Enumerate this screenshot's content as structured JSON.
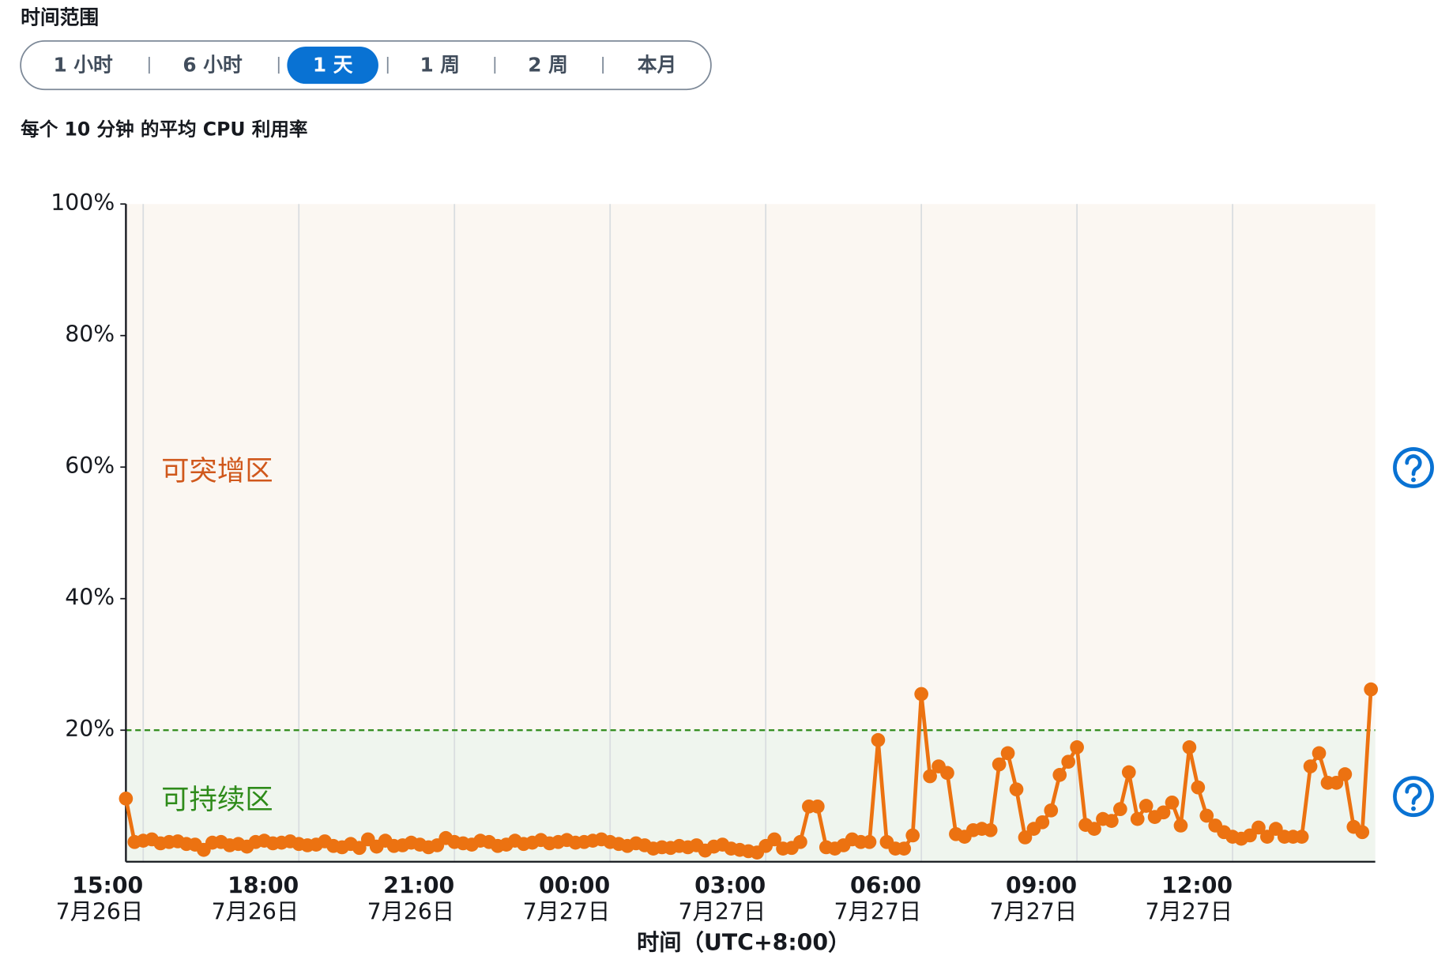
{
  "time_range": {
    "label": "时间范围",
    "options": [
      "1 小时",
      "6 小时",
      "1 天",
      "1 周",
      "2 周",
      "本月"
    ],
    "selected_index": 2
  },
  "chart_data": {
    "type": "line",
    "title": "每个 10 分钟 的平均 CPU 利用率",
    "x_label": "时间（UTC+8:00）",
    "color": "#ec7211",
    "x": [
      "7月26日 14:40",
      "7月26日 14:50",
      "7月26日 15:00",
      "7月26日 15:10",
      "7月26日 15:20",
      "7月26日 15:30",
      "7月26日 15:40",
      "7月26日 15:50",
      "7月26日 16:00",
      "7月26日 16:10",
      "7月26日 16:20",
      "7月26日 16:30",
      "7月26日 16:40",
      "7月26日 16:50",
      "7月26日 17:00",
      "7月26日 17:10",
      "7月26日 17:20",
      "7月26日 17:30",
      "7月26日 17:40",
      "7月26日 17:50",
      "7月26日 18:00",
      "7月26日 18:10",
      "7月26日 18:20",
      "7月26日 18:30",
      "7月26日 18:40",
      "7月26日 18:50",
      "7月26日 19:00",
      "7月26日 19:10",
      "7月26日 19:20",
      "7月26日 19:30",
      "7月26日 19:40",
      "7月26日 19:50",
      "7月26日 20:00",
      "7月26日 20:10",
      "7月26日 20:20",
      "7月26日 20:30",
      "7月26日 20:40",
      "7月26日 20:50",
      "7月26日 21:00",
      "7月26日 21:10",
      "7月26日 21:20",
      "7月26日 21:30",
      "7月26日 21:40",
      "7月26日 21:50",
      "7月26日 22:00",
      "7月26日 22:10",
      "7月26日 22:20",
      "7月26日 22:30",
      "7月26日 22:40",
      "7月26日 22:50",
      "7月26日 23:00",
      "7月26日 23:10",
      "7月26日 23:20",
      "7月26日 23:30",
      "7月26日 23:40",
      "7月26日 23:50",
      "7月27日 00:00",
      "7月27日 00:10",
      "7月27日 00:20",
      "7月27日 00:30",
      "7月27日 00:40",
      "7月27日 00:50",
      "7月27日 01:00",
      "7月27日 01:10",
      "7月27日 01:20",
      "7月27日 01:30",
      "7月27日 01:40",
      "7月27日 01:50",
      "7月27日 02:00",
      "7月27日 02:10",
      "7月27日 02:20",
      "7月27日 02:30",
      "7月27日 02:40",
      "7月27日 02:50",
      "7月27日 03:00",
      "7月27日 03:10",
      "7月27日 03:20",
      "7月27日 03:30",
      "7月27日 03:40",
      "7月27日 03:50",
      "7月27日 04:00",
      "7月27日 04:10",
      "7月27日 04:20",
      "7月27日 04:30",
      "7月27日 04:40",
      "7月27日 04:50",
      "7月27日 05:00",
      "7月27日 05:10",
      "7月27日 05:20",
      "7月27日 05:30",
      "7月27日 05:40",
      "7月27日 05:50",
      "7月27日 06:00",
      "7月27日 06:10",
      "7月27日 06:20",
      "7月27日 06:30",
      "7月27日 06:40",
      "7月27日 06:50",
      "7月27日 07:00",
      "7月27日 07:10",
      "7月27日 07:20",
      "7月27日 07:30",
      "7月27日 07:40",
      "7月27日 07:50",
      "7月27日 08:00",
      "7月27日 08:10",
      "7月27日 08:20",
      "7月27日 08:30",
      "7月27日 08:40",
      "7月27日 08:50",
      "7月27日 09:00",
      "7月27日 09:10",
      "7月27日 09:20",
      "7月27日 09:30",
      "7月27日 09:40",
      "7月27日 09:50",
      "7月27日 10:00",
      "7月27日 10:10",
      "7月27日 10:20",
      "7月27日 10:30",
      "7月27日 10:40",
      "7月27日 10:50",
      "7月27日 11:00",
      "7月27日 11:10",
      "7月27日 11:20",
      "7月27日 11:30",
      "7月27日 11:40",
      "7月27日 11:50",
      "7月27日 12:00",
      "7月27日 12:10",
      "7月27日 12:20",
      "7月27日 12:30",
      "7月27日 12:40",
      "7月27日 12:50",
      "7月27日 13:00",
      "7月27日 13:10",
      "7月27日 13:20",
      "7月27日 13:30",
      "7月27日 13:40",
      "7月27日 13:50",
      "7月27日 14:00",
      "7月27日 14:10",
      "7月27日 14:20",
      "7月27日 14:30",
      "7月27日 14:40"
    ],
    "values": [
      9.6,
      3.0,
      3.2,
      3.4,
      2.8,
      3.0,
      3.1,
      2.7,
      2.6,
      1.8,
      2.9,
      3.0,
      2.5,
      2.7,
      2.3,
      3.0,
      3.2,
      2.8,
      2.9,
      3.1,
      2.7,
      2.5,
      2.6,
      3.1,
      2.4,
      2.2,
      2.7,
      2.1,
      3.4,
      2.3,
      3.2,
      2.4,
      2.5,
      2.9,
      2.6,
      2.2,
      2.5,
      3.6,
      3.0,
      2.8,
      2.6,
      3.2,
      3.0,
      2.4,
      2.6,
      3.2,
      2.7,
      2.9,
      3.3,
      2.8,
      3.0,
      3.3,
      2.9,
      3.0,
      3.2,
      3.4,
      3.0,
      2.7,
      2.4,
      2.8,
      2.5,
      2.0,
      2.2,
      2.1,
      2.4,
      2.2,
      2.5,
      1.7,
      2.3,
      2.6,
      2.0,
      1.8,
      1.6,
      1.4,
      2.4,
      3.4,
      2.0,
      2.1,
      3.0,
      8.4,
      8.4,
      2.2,
      2.0,
      2.5,
      3.4,
      3.0,
      3.0,
      18.5,
      3.0,
      2.0,
      2.0,
      4.0,
      25.5,
      13,
      14.5,
      13.5,
      4.2,
      3.8,
      4.8,
      5.0,
      4.8,
      14.8,
      16.5,
      11,
      3.7,
      5.0,
      6.0,
      7.8,
      13.2,
      15.2,
      17.4,
      5.6,
      5.0,
      6.5,
      6.2,
      8.0,
      13.6,
      6.5,
      8.5,
      6.8,
      7.5,
      9.0,
      5.5,
      17.4,
      11.3,
      7.0,
      5.5,
      4.5,
      3.8,
      3.5,
      4.0,
      5.2,
      3.8,
      5.0,
      3.8,
      3.8,
      3.8,
      14.5,
      16.5,
      12,
      12,
      13.3,
      5.3,
      4.5,
      26.2
    ],
    "xlim": [
      "7月26日 14:40",
      "7月27日 14:45"
    ],
    "xticks": [
      {
        "value": "7月26日 15:00",
        "label": [
          "15:00",
          "7月26日"
        ]
      },
      {
        "value": "7月26日 18:00",
        "label": [
          "18:00",
          "7月26日"
        ]
      },
      {
        "value": "7月26日 21:00",
        "label": [
          "21:00",
          "7月26日"
        ]
      },
      {
        "value": "7月27日 00:00",
        "label": [
          "00:00",
          "7月27日"
        ]
      },
      {
        "value": "7月27日 03:00",
        "label": [
          "03:00",
          "7月27日"
        ]
      },
      {
        "value": "7月27日 06:00",
        "label": [
          "06:00",
          "7月27日"
        ]
      },
      {
        "value": "7月27日 09:00",
        "label": [
          "09:00",
          "7月27日"
        ]
      },
      {
        "value": "7月27日 12:00",
        "label": [
          "12:00",
          "7月27日"
        ]
      }
    ],
    "ylim": [
      0,
      100
    ],
    "yticks": [
      {
        "value": 20,
        "label": "20%"
      },
      {
        "value": 40,
        "label": "40%"
      },
      {
        "value": 60,
        "label": "60%"
      },
      {
        "value": 80,
        "label": "80%"
      },
      {
        "value": 100,
        "label": "100%"
      }
    ],
    "grid": true,
    "threshold": 20,
    "threshold_color": "#2e8b1a",
    "zones": [
      {
        "label": "可突增区",
        "label_color": "#d0581c",
        "fill": "#fbf7f2"
      },
      {
        "label": "可持续区",
        "label_color": "#2e8b1a",
        "fill": "#eff5ee"
      }
    ]
  }
}
